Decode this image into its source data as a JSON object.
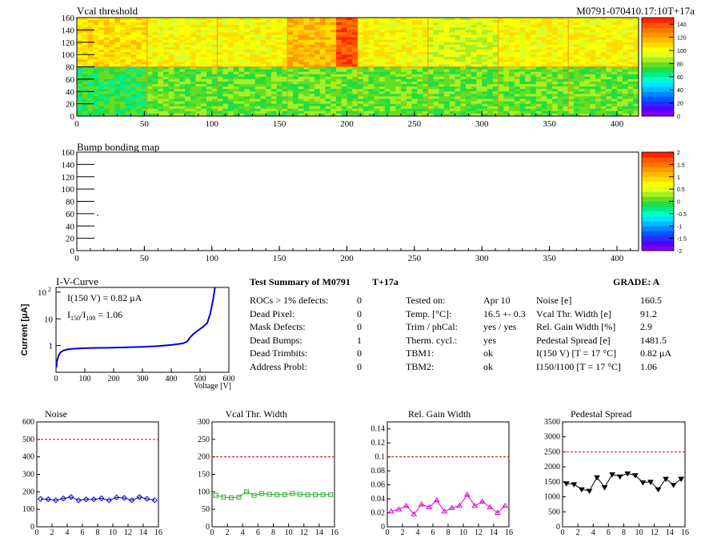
{
  "header": {
    "vcal_title": "Vcal threshold",
    "module_id": "M0791-070410.17:10T+17a",
    "bump_title": "Bump bonding map"
  },
  "maps": {
    "vcal": {
      "xlim": [
        0,
        416
      ],
      "ylim": [
        0,
        160
      ],
      "xticks": [
        "0",
        "50",
        "100",
        "150",
        "200",
        "250",
        "300",
        "350",
        "400"
      ],
      "yticks": [
        "0",
        "20",
        "40",
        "60",
        "80",
        "100",
        "120",
        "140",
        "160"
      ],
      "z_ticks": [
        "0",
        "20",
        "40",
        "60",
        "80",
        "100",
        "120",
        "140"
      ],
      "zlim": [
        0,
        150
      ]
    },
    "bump": {
      "xlim": [
        0,
        416
      ],
      "ylim": [
        0,
        160
      ],
      "xticks": [
        "0",
        "50",
        "100",
        "150",
        "200",
        "250",
        "300",
        "350",
        "400"
      ],
      "yticks": [
        "0",
        "20",
        "40",
        "60",
        "80",
        "100",
        "120",
        "140",
        "160"
      ],
      "z_ticks": [
        "-2",
        "-1.5",
        "-1",
        "-0.5",
        "0",
        "0.5",
        "1",
        "1.5",
        "2"
      ],
      "zlim": [
        -2,
        2
      ]
    }
  },
  "iv": {
    "title": "I-V-Curve",
    "ylabel": "Current [μA]",
    "xlabel": "Voltage [V]",
    "note1": "I(150 V) = 0.82 μA",
    "note2_main": "I",
    "note2_sub1": "150",
    "note2_slash": "/I",
    "note2_sub2": "100",
    "note2_val": "=  1.06",
    "xticks": [
      "0",
      "100",
      "200",
      "300",
      "400",
      "500",
      "600"
    ],
    "yticks": [
      "1",
      "10",
      "10"
    ],
    "ytick_exp": "2"
  },
  "summary": {
    "title": "Test Summary of M0791",
    "subtitle": "T+17a",
    "grade": "GRADE:  A",
    "col1": [
      {
        "label": "ROCs > 1% defects:",
        "value": "0"
      },
      {
        "label": "Dead Pixel:",
        "value": "0"
      },
      {
        "label": "Mask Defects:",
        "value": "0"
      },
      {
        "label": "Dead Bumps:",
        "value": "1"
      },
      {
        "label": "Dead Trimbits:",
        "value": "0"
      },
      {
        "label": "Address Probl:",
        "value": "0"
      }
    ],
    "col2": [
      {
        "label": "Tested on:",
        "value": "Apr 10"
      },
      {
        "label": "Temp. [°C]:",
        "value": "16.5 +- 0.3"
      },
      {
        "label": "Trim / phCal:",
        "value": "yes / yes"
      },
      {
        "label": "Therm. cycl.:",
        "value": "yes"
      },
      {
        "label": "TBM1:",
        "value": "ok"
      },
      {
        "label": "TBM2:",
        "value": "ok"
      }
    ],
    "col3": [
      {
        "label": "Noise [e]",
        "value": "160.5"
      },
      {
        "label": "Vcal Thr. Width [e]",
        "value": "91.2"
      },
      {
        "label": "Rel. Gain Width [%]",
        "value": "2.9"
      },
      {
        "label": "Pedestal Spread [e]",
        "value": "1481.5"
      },
      {
        "label": "I(150 V) [T = 17 °C]",
        "value": "0.82 μA"
      },
      {
        "label": "I150/I100  [T = 17 °C]",
        "value": "1.06"
      }
    ]
  },
  "chart_data": [
    {
      "type": "line",
      "title": "Noise",
      "x": [
        0,
        1,
        2,
        3,
        4,
        5,
        6,
        7,
        8,
        9,
        10,
        11,
        12,
        13,
        14,
        15
      ],
      "values": [
        160,
        157,
        152,
        162,
        170,
        152,
        157,
        157,
        163,
        152,
        168,
        165,
        152,
        170,
        160,
        152
      ],
      "threshold": 500,
      "xlim": [
        0,
        16
      ],
      "ylim": [
        0,
        600
      ],
      "yticks": [
        "0",
        "100",
        "200",
        "300",
        "400",
        "500",
        "600"
      ],
      "color": "#0000cc",
      "marker": "diamond"
    },
    {
      "type": "line",
      "title": "Vcal Thr. Width",
      "x": [
        0,
        1,
        2,
        3,
        4,
        5,
        6,
        7,
        8,
        9,
        10,
        11,
        12,
        13,
        14,
        15
      ],
      "values": [
        90,
        85,
        83,
        85,
        100,
        90,
        95,
        93,
        92,
        92,
        95,
        93,
        92,
        92,
        92,
        92
      ],
      "threshold": 200,
      "xlim": [
        0,
        16
      ],
      "ylim": [
        0,
        300
      ],
      "yticks": [
        "0",
        "50",
        "100",
        "150",
        "200",
        "250",
        "300"
      ],
      "color": "#33aa33",
      "marker": "square"
    },
    {
      "type": "line",
      "title": "Rel. Gain Width",
      "x": [
        0,
        1,
        2,
        3,
        4,
        5,
        6,
        7,
        8,
        9,
        10,
        11,
        12,
        13,
        14,
        15
      ],
      "values": [
        0.022,
        0.025,
        0.03,
        0.018,
        0.032,
        0.028,
        0.038,
        0.022,
        0.027,
        0.03,
        0.046,
        0.03,
        0.036,
        0.028,
        0.02,
        0.03
      ],
      "threshold": 0.1,
      "xlim": [
        0,
        16
      ],
      "ylim": [
        0,
        0.15
      ],
      "yticks": [
        "0",
        "0.02",
        "0.04",
        "0.06",
        "0.08",
        "0.1",
        "0.12",
        "0.14"
      ],
      "color": "#e000e0",
      "marker": "triangle"
    },
    {
      "type": "line",
      "title": "Pedestal Spread",
      "x": [
        0,
        1,
        2,
        3,
        4,
        5,
        6,
        7,
        8,
        9,
        10,
        11,
        12,
        13,
        14,
        15
      ],
      "values": [
        1450,
        1420,
        1250,
        1200,
        1650,
        1320,
        1750,
        1680,
        1780,
        1720,
        1480,
        1500,
        1250,
        1600,
        1400,
        1600
      ],
      "threshold": 2500,
      "xlim": [
        0,
        16
      ],
      "ylim": [
        0,
        3500
      ],
      "yticks": [
        "0",
        "500",
        "1000",
        "1500",
        "2000",
        "2500",
        "3000",
        "3500"
      ],
      "color": "#000000",
      "marker": "triangle-down"
    }
  ],
  "xticks_small": [
    "0",
    "2",
    "4",
    "6",
    "8",
    "10",
    "12",
    "14",
    "16"
  ]
}
